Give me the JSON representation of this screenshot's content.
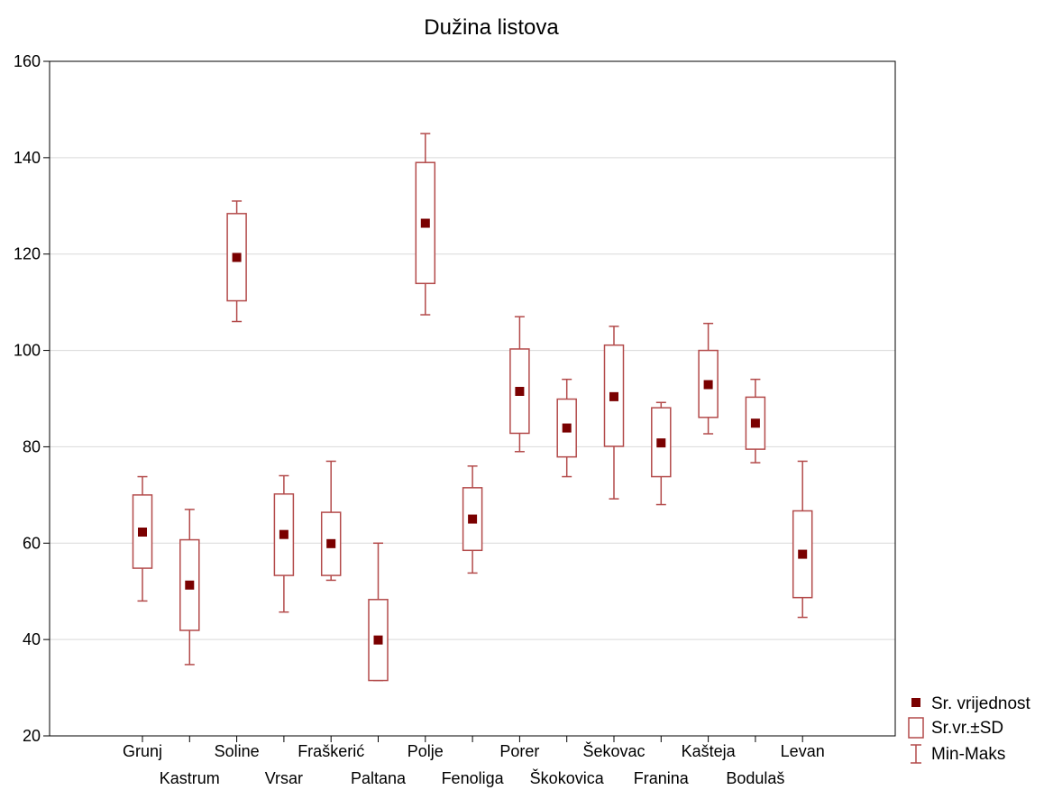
{
  "chart_data": {
    "type": "box",
    "title": "Dužina listova",
    "xlabel": "",
    "ylabel": "",
    "ylim": [
      20,
      160
    ],
    "yticks": [
      20,
      40,
      60,
      80,
      100,
      120,
      140,
      160
    ],
    "grid": true,
    "categories": [
      "Grunj",
      "Kastrum",
      "Soline",
      "Vrsar",
      "Fraškerić",
      "Paltana",
      "Polje",
      "Fenoliga",
      "Porer",
      "Škokovica",
      "Šekovac",
      "Franina",
      "Kašteja",
      "Bodulaš",
      "Levan"
    ],
    "series": [
      {
        "name": "Sr. vrijednost",
        "values": [
          62.3,
          51.3,
          119.3,
          61.8,
          59.9,
          39.9,
          126.4,
          65.0,
          91.5,
          83.9,
          90.4,
          80.8,
          92.9,
          84.9,
          57.7
        ]
      },
      {
        "name": "Sr.vr.±SD",
        "low": [
          54.8,
          41.9,
          110.3,
          53.3,
          53.3,
          31.5,
          113.9,
          58.5,
          82.8,
          77.9,
          80.1,
          73.8,
          86.1,
          79.5,
          48.7
        ],
        "high": [
          70.0,
          60.7,
          128.4,
          70.2,
          66.4,
          48.3,
          139.0,
          71.5,
          100.3,
          89.9,
          101.1,
          88.1,
          100.0,
          90.3,
          66.7
        ]
      },
      {
        "name": "Min-Maks",
        "min": [
          48.0,
          34.8,
          106.0,
          45.7,
          52.3,
          31.5,
          107.4,
          53.8,
          79.0,
          73.8,
          69.2,
          68.0,
          82.7,
          76.7,
          44.6
        ],
        "max": [
          73.8,
          67.0,
          131.0,
          74.0,
          77.0,
          60.0,
          145.0,
          76.0,
          107.0,
          94.0,
          105.0,
          89.2,
          105.6,
          94.0,
          77.0
        ]
      }
    ],
    "legend_position": "bottom-right",
    "colors": {
      "box": "#b34a4a",
      "mean": "#7a0000",
      "grid": "#d9d9d9",
      "axis": "#000000"
    }
  }
}
